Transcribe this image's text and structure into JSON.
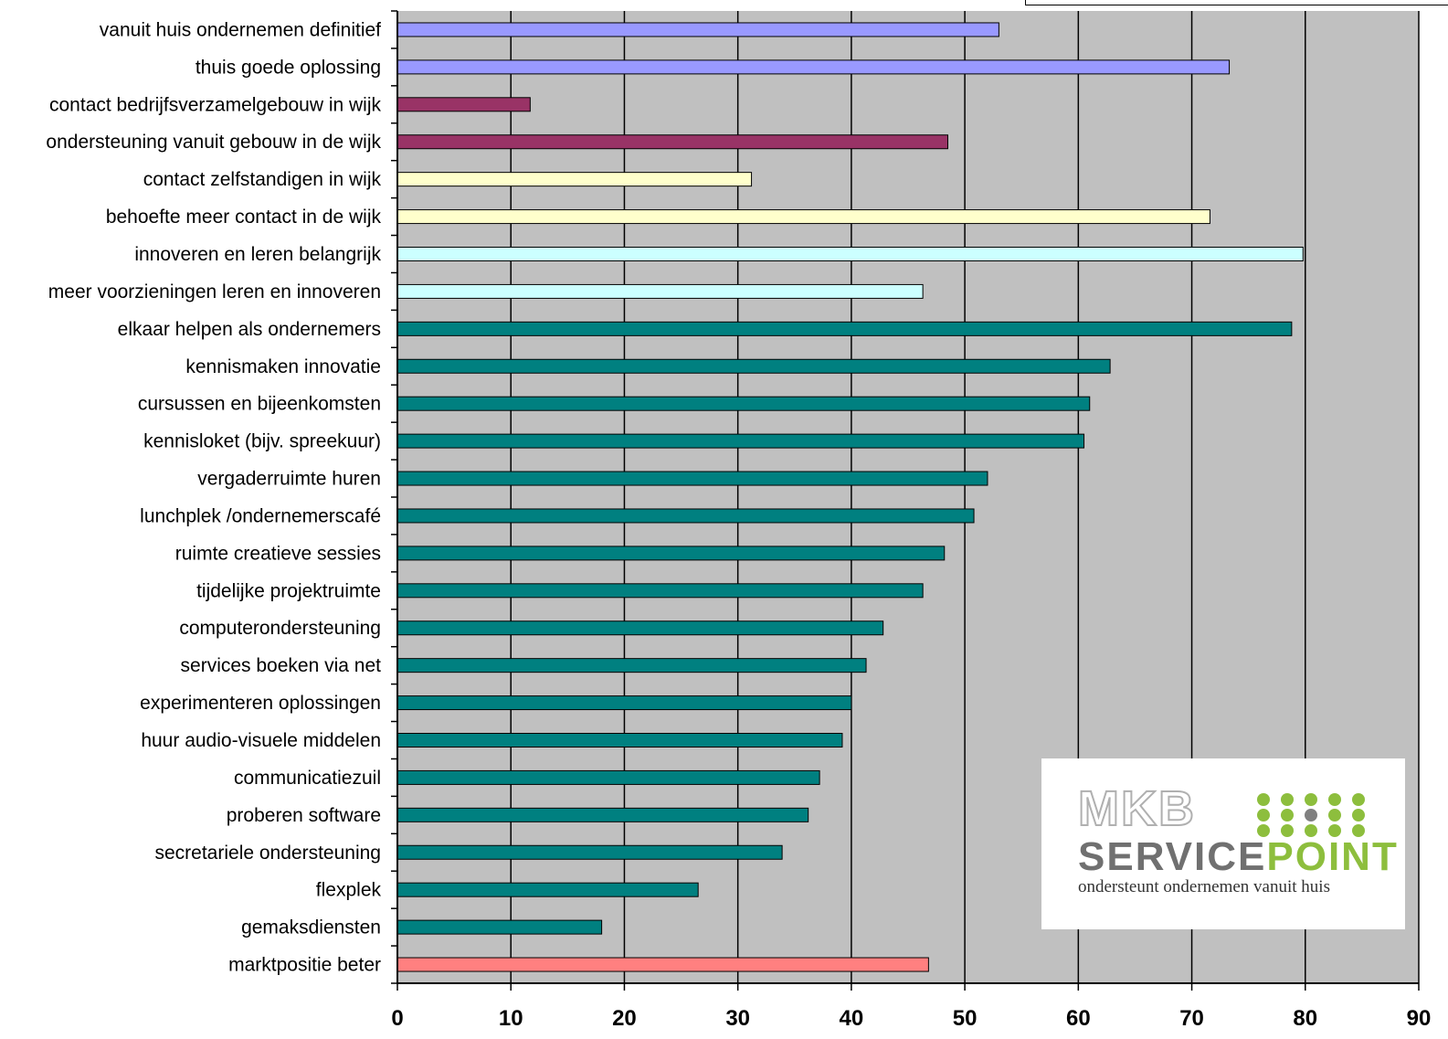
{
  "chart_data": {
    "type": "bar",
    "orientation": "horizontal",
    "categories": [
      "vanuit huis ondernemen definitief",
      "thuis goede oplossing",
      "contact bedrijfsverzamelgebouw in wijk",
      "ondersteuning vanuit gebouw in de wijk",
      "contact zelfstandigen in wijk",
      "behoefte meer contact in de wijk",
      "innoveren en leren belangrijk",
      "meer voorzieningen leren en innoveren",
      "elkaar helpen als ondernemers",
      "kennismaken innovatie",
      "cursussen en bijeenkomsten",
      "kennisloket (bijv. spreekuur)",
      "vergaderruimte huren",
      "lunchplek /ondernemerscafé",
      "ruimte creatieve sessies",
      "tijdelijke projektruimte",
      "computerondersteuning",
      "services boeken via net",
      "experimenteren oplossingen",
      "huur audio-visuele middelen",
      "communicatiezuil",
      "proberen software",
      "secretariele ondersteuning",
      "flexplek",
      "gemaksdiensten",
      "marktpositie beter"
    ],
    "values": [
      53,
      73.3,
      11.7,
      48.5,
      31.2,
      71.6,
      79.8,
      46.3,
      78.8,
      62.8,
      61,
      60.5,
      52,
      50.8,
      48.2,
      46.3,
      42.8,
      41.3,
      40,
      39.2,
      37.2,
      36.2,
      33.9,
      26.5,
      18,
      46.8
    ],
    "bar_colors": [
      "#9999ff",
      "#9999ff",
      "#993366",
      "#993366",
      "#ffffcc",
      "#ffffcc",
      "#ccffff",
      "#ccffff",
      "#008080",
      "#008080",
      "#008080",
      "#008080",
      "#008080",
      "#008080",
      "#008080",
      "#008080",
      "#008080",
      "#008080",
      "#008080",
      "#008080",
      "#008080",
      "#008080",
      "#008080",
      "#008080",
      "#008080",
      "#ff8080"
    ],
    "x_ticks": [
      "0",
      "10",
      "20",
      "30",
      "40",
      "50",
      "60",
      "70",
      "80",
      "90"
    ],
    "xlim": [
      0,
      90
    ],
    "grid": true,
    "plot_background": "#c0c0c0",
    "title": "",
    "xlabel": "",
    "ylabel": ""
  },
  "logo": {
    "brand_top": "MKB",
    "brand_bottom_part1": "SERVICE",
    "brand_bottom_part2": "POINT",
    "tagline": "ondersteunt ondernemen vanuit huis",
    "dot_color_green": "#8dbe3d",
    "dot_color_grey": "#808080"
  }
}
